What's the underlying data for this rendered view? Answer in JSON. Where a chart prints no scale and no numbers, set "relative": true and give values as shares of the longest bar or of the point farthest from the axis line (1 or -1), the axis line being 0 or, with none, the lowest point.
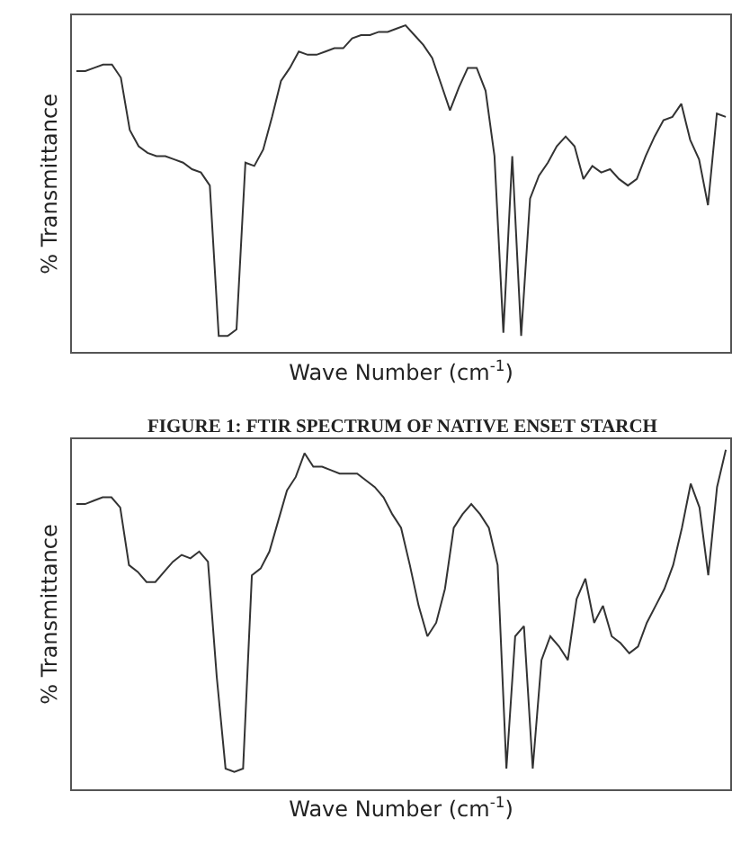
{
  "chart_data": [
    {
      "type": "line",
      "relative": true,
      "xlabel": "Wave Number (cm$^{-1}$)",
      "ylabel": "% Transmittance",
      "annotations": [
        "FIGURE 1: FTIR SPECTRUM OF NATIVE ENSET STARCH"
      ],
      "categories": [
        null,
        null,
        null,
        null,
        null,
        null,
        null,
        null,
        null,
        null,
        null,
        null,
        null,
        null,
        null,
        null,
        null,
        null,
        null,
        null,
        null,
        null,
        null,
        null,
        null,
        null,
        null,
        null,
        null,
        null,
        null,
        null,
        null,
        null,
        null,
        null,
        null,
        null,
        null,
        null,
        null,
        null,
        null,
        null,
        null,
        null,
        null,
        null,
        null,
        null,
        null,
        null,
        null,
        null,
        null,
        null,
        null,
        null,
        null,
        null,
        null,
        null,
        null,
        null,
        null,
        null,
        null,
        null,
        null,
        null,
        null,
        null,
        null,
        null
      ],
      "series": [
        {
          "color": "#333333",
          "values": [
            0.86,
            0.86,
            0.87,
            0.88,
            0.88,
            0.84,
            0.68,
            0.63,
            0.61,
            0.6,
            0.6,
            0.59,
            0.58,
            0.56,
            0.55,
            0.51,
            0.05,
            0.05,
            0.07,
            0.58,
            0.57,
            0.62,
            0.72,
            0.83,
            0.87,
            0.92,
            0.91,
            0.91,
            0.92,
            0.93,
            0.93,
            0.96,
            0.97,
            0.97,
            0.98,
            0.98,
            0.99,
            1,
            0.97,
            0.94,
            0.9,
            0.82,
            0.74,
            0.81,
            0.87,
            0.87,
            0.8,
            0.6,
            0.06,
            0.6,
            0.05,
            0.47,
            0.54,
            0.58,
            0.63,
            0.66,
            0.63,
            0.53,
            0.57,
            0.55,
            0.56,
            0.53,
            0.51,
            0.53,
            0.6,
            0.66,
            0.71,
            0.72,
            0.76,
            0.65,
            0.59,
            0.45,
            0.73,
            0.72
          ]
        }
      ]
    },
    {
      "type": "line",
      "relative": true,
      "xlabel": "Wave Number (cm$^{-1}$)",
      "ylabel": "% Transmittance",
      "categories": [
        null,
        null,
        null,
        null,
        null,
        null,
        null,
        null,
        null,
        null,
        null,
        null,
        null,
        null,
        null,
        null,
        null,
        null,
        null,
        null,
        null,
        null,
        null,
        null,
        null,
        null,
        null,
        null,
        null,
        null,
        null,
        null,
        null,
        null,
        null,
        null,
        null,
        null,
        null,
        null,
        null,
        null,
        null,
        null,
        null,
        null,
        null,
        null,
        null,
        null,
        null,
        null,
        null,
        null,
        null,
        null,
        null,
        null,
        null,
        null,
        null,
        null,
        null,
        null,
        null,
        null,
        null,
        null,
        null,
        null,
        null,
        null,
        null,
        null,
        null
      ],
      "series": [
        {
          "color": "#333333",
          "values": [
            0.84,
            0.84,
            0.85,
            0.86,
            0.86,
            0.83,
            0.66,
            0.64,
            0.61,
            0.61,
            0.64,
            0.67,
            0.69,
            0.68,
            0.7,
            0.67,
            0.33,
            0.06,
            0.05,
            0.06,
            0.63,
            0.65,
            0.7,
            0.79,
            0.88,
            0.92,
            0.99,
            0.95,
            0.95,
            0.94,
            0.93,
            0.93,
            0.93,
            0.91,
            0.89,
            0.86,
            0.81,
            0.77,
            0.66,
            0.54,
            0.45,
            0.49,
            0.59,
            0.77,
            0.81,
            0.84,
            0.81,
            0.77,
            0.66,
            0.06,
            0.45,
            0.48,
            0.06,
            0.38,
            0.45,
            0.42,
            0.38,
            0.56,
            0.62,
            0.49,
            0.54,
            0.45,
            0.43,
            0.4,
            0.42,
            0.49,
            0.54,
            0.59,
            0.66,
            0.77,
            0.9,
            0.83,
            0.63,
            0.89,
            1
          ]
        }
      ]
    }
  ]
}
